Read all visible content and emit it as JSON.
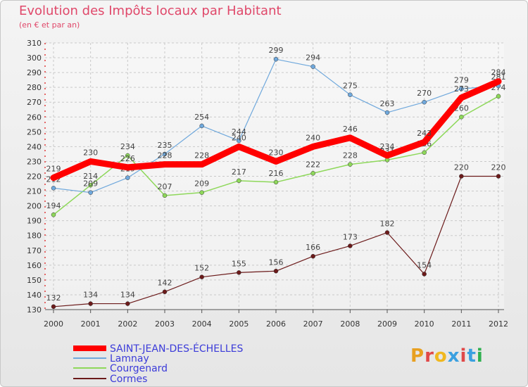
{
  "header": {
    "title": "Evolution des Impôts locaux par Habitant",
    "subtitle": "(en € et par an)"
  },
  "logo": {
    "text": "Proxiti"
  },
  "chart_data": {
    "type": "line",
    "title": "Evolution des Impôts locaux par Habitant",
    "subtitle": "(en € et par an)",
    "xlabel": "",
    "ylabel": "",
    "x": [
      "2000",
      "2001",
      "2002",
      "2003",
      "2004",
      "2005",
      "2006",
      "2007",
      "2008",
      "2009",
      "2010",
      "2011",
      "2012"
    ],
    "ylim": [
      130,
      310
    ],
    "yticks": [
      130,
      140,
      150,
      160,
      170,
      180,
      190,
      200,
      210,
      220,
      230,
      240,
      250,
      260,
      270,
      280,
      290,
      300,
      310
    ],
    "grid": true,
    "legend_position": "bottom-left",
    "series": [
      {
        "name": "SAINT-JEAN-DES-ÉCHELLES",
        "color": "#ff0000",
        "values": [
          219,
          230,
          226,
          228,
          228,
          240,
          230,
          240,
          246,
          234,
          243,
          273,
          284
        ],
        "labels": [
          "219",
          "230",
          "226",
          "228",
          "228",
          "240",
          "230",
          "240",
          "246",
          "234",
          "243",
          "273",
          "284"
        ]
      },
      {
        "name": "Lamnay",
        "color": "#6fa8dc",
        "values": [
          212,
          209,
          219,
          235,
          254,
          244,
          299,
          294,
          275,
          263,
          270,
          279,
          281
        ],
        "labels": [
          "212",
          "209",
          "219",
          "235",
          "254",
          "244",
          "299",
          "294",
          "275",
          "263",
          "270",
          "279",
          "281"
        ]
      },
      {
        "name": "Courgenard",
        "color": "#8ed85a",
        "values": [
          194,
          214,
          234,
          207,
          209,
          217,
          216,
          222,
          228,
          231,
          236,
          260,
          274
        ],
        "labels": [
          "194",
          "214",
          "234",
          "207",
          "209",
          "217",
          "216",
          "222",
          "228",
          "231",
          "236",
          "260",
          "274"
        ]
      },
      {
        "name": "Cormes",
        "color": "#6b1a1a",
        "values": [
          132,
          134,
          134,
          142,
          152,
          155,
          156,
          166,
          173,
          182,
          154,
          220,
          220
        ],
        "labels": [
          "132",
          "134",
          "134",
          "142",
          "152",
          "155",
          "156",
          "166",
          "173",
          "182",
          "154",
          "220",
          "220"
        ]
      }
    ]
  }
}
